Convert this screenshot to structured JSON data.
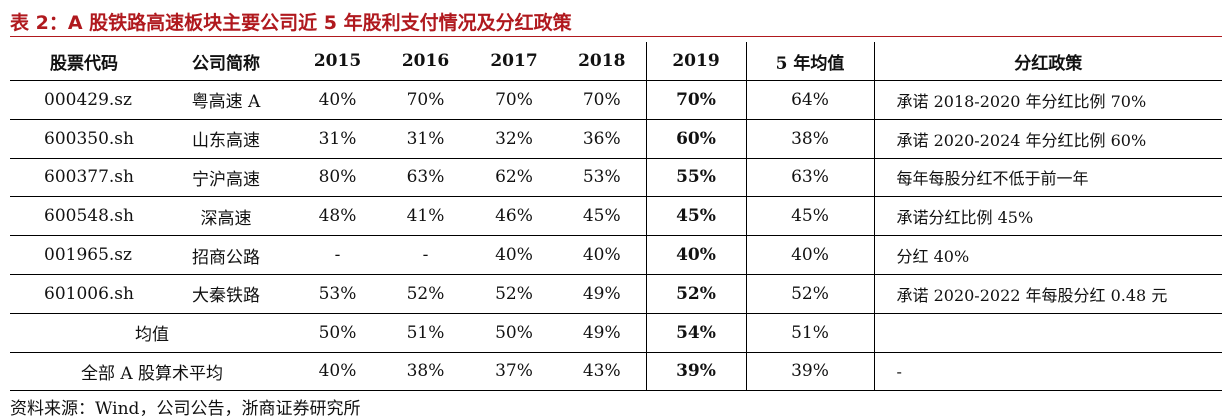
{
  "title": "表 2：A 股铁路高速板块主要公司近 5 年股利支付情况及分红政策",
  "table": {
    "headers": [
      "股票代码",
      "公司简称",
      "2015",
      "2016",
      "2017",
      "2018",
      "2019",
      "5 年均值",
      "分红政策"
    ],
    "rows": [
      {
        "code": "000429.sz",
        "name": "粤高速 A",
        "y2015": "40%",
        "y2016": "70%",
        "y2017": "70%",
        "y2018": "70%",
        "y2019": "70%",
        "avg5": "64%",
        "policy": "承诺 2018-2020 年分红比例 70%"
      },
      {
        "code": "600350.sh",
        "name": "山东高速",
        "y2015": "31%",
        "y2016": "31%",
        "y2017": "32%",
        "y2018": "36%",
        "y2019": "60%",
        "avg5": "38%",
        "policy": "承诺 2020-2024 年分红比例 60%"
      },
      {
        "code": "600377.sh",
        "name": "宁沪高速",
        "y2015": "80%",
        "y2016": "63%",
        "y2017": "62%",
        "y2018": "53%",
        "y2019": "55%",
        "avg5": "63%",
        "policy": "每年每股分红不低于前一年"
      },
      {
        "code": "600548.sh",
        "name": "深高速",
        "y2015": "48%",
        "y2016": "41%",
        "y2017": "46%",
        "y2018": "45%",
        "y2019": "45%",
        "avg5": "45%",
        "policy": "承诺分红比例 45%"
      },
      {
        "code": "001965.sz",
        "name": "招商公路",
        "y2015": "-",
        "y2016": "-",
        "y2017": "40%",
        "y2018": "40%",
        "y2019": "40%",
        "avg5": "40%",
        "policy": "分红 40%"
      },
      {
        "code": "601006.sh",
        "name": "大秦铁路",
        "y2015": "53%",
        "y2016": "52%",
        "y2017": "52%",
        "y2018": "49%",
        "y2019": "52%",
        "avg5": "52%",
        "policy": "承诺 2020-2022 年每股分红 0.48 元"
      }
    ],
    "summary": [
      {
        "label": "均值",
        "y2015": "50%",
        "y2016": "51%",
        "y2017": "50%",
        "y2018": "49%",
        "y2019": "54%",
        "avg5": "51%",
        "policy": ""
      },
      {
        "label": "全部 A 股算术平均",
        "y2015": "40%",
        "y2016": "38%",
        "y2017": "37%",
        "y2018": "43%",
        "y2019": "39%",
        "avg5": "39%",
        "policy": "-"
      }
    ]
  },
  "source": "资料来源：Wind，公司公告，浙商证券研究所",
  "colors": {
    "title": "#b0191e",
    "rule": "#000000"
  }
}
